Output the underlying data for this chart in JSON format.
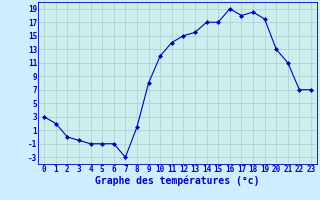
{
  "hours": [
    0,
    1,
    2,
    3,
    4,
    5,
    6,
    7,
    8,
    9,
    10,
    11,
    12,
    13,
    14,
    15,
    16,
    17,
    18,
    19,
    20,
    21,
    22,
    23
  ],
  "temps": [
    3,
    2,
    0,
    -0.5,
    -1,
    -1,
    -1,
    -3,
    1.5,
    8,
    12,
    14,
    15,
    15.5,
    17,
    17,
    19,
    18,
    18.5,
    17.5,
    13,
    11,
    7,
    7
  ],
  "line_color": "#0000bb",
  "marker": "D",
  "marker_size": 2.0,
  "bg_color": "#cceeff",
  "plot_bg_color": "#cceeee",
  "grid_color": "#aacccc",
  "xlabel": "Graphe des températures (°c)",
  "xlabel_color": "#0000bb",
  "tick_color": "#0000bb",
  "ylim": [
    -4,
    20
  ],
  "yticks": [
    -3,
    -1,
    1,
    3,
    5,
    7,
    9,
    11,
    13,
    15,
    17,
    19
  ],
  "xlim": [
    -0.5,
    23.5
  ],
  "tick_fontsize": 5.5,
  "xlabel_fontsize": 7.0,
  "xlabel_bold": true
}
